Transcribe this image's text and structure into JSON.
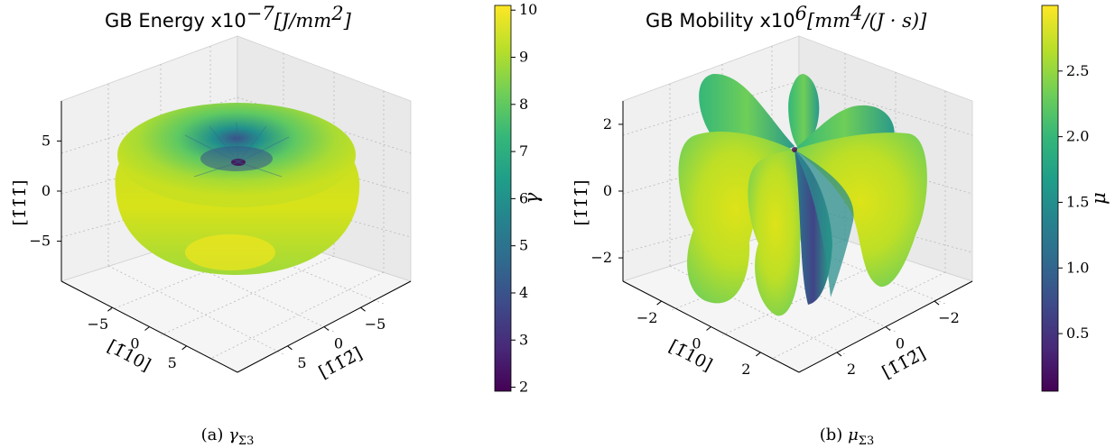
{
  "chart_data": [
    {
      "type": "surface3d",
      "title": "GB Energy x10",
      "title_exponent": "−7",
      "title_units": "[J/mm²]",
      "title_units_head": "[J/mm",
      "title_units_tail": "]",
      "title_units_sup": "2",
      "z_label": "[1̄1̄1̄]",
      "x_label": "[1̄10]",
      "y_label": "[1̄1̄2̄]",
      "z_ticks": [
        "5",
        "0",
        "−5"
      ],
      "x_ticks": [
        "−5",
        "0",
        "5"
      ],
      "y_ticks": [
        "−5",
        "0",
        "5"
      ],
      "z_range": [
        -9,
        9
      ],
      "x_range": [
        -9,
        9
      ],
      "y_range": [
        -9,
        9
      ],
      "colorbar": {
        "label": "γ",
        "min": 1.8,
        "max": 10.1,
        "ticks": [
          "10",
          "9",
          "8",
          "7",
          "6",
          "5",
          "4",
          "3",
          "2"
        ],
        "tick_values": [
          10,
          9,
          8,
          7,
          6,
          5,
          4,
          3,
          2
        ],
        "colormap": "viridis"
      },
      "caption_prefix": "(a) ",
      "caption_symbol": "γ",
      "caption_sub": "Σ3"
    },
    {
      "type": "surface3d",
      "title": "GB Mobility x10",
      "title_exponent": "6",
      "title_units": "[mm⁴/(J·s)]",
      "title_units_head": "[mm",
      "title_units_tail": "/(J · s)]",
      "title_units_sup": "4",
      "z_label": "[1̄1̄1̄]",
      "x_label": "[1̄10]",
      "y_label": "[1̄1̄2̄]",
      "z_ticks": [
        "2",
        "0",
        "−2"
      ],
      "x_ticks": [
        "−2",
        "0",
        "2"
      ],
      "y_ticks": [
        "−2",
        "0",
        "2"
      ],
      "z_range": [
        -2.7,
        2.7
      ],
      "x_range": [
        -2.7,
        2.7
      ],
      "y_range": [
        -2.7,
        2.7
      ],
      "colorbar": {
        "label": "μ",
        "min": 0.02,
        "max": 3.0,
        "ticks": [
          "2.5",
          "2.0",
          "1.5",
          "1.0",
          "0.5"
        ],
        "tick_values": [
          2.5,
          2.0,
          1.5,
          1.0,
          0.5
        ],
        "colormap": "viridis"
      },
      "caption_prefix": "(b) ",
      "caption_symbol": "μ",
      "caption_sub": "Σ3"
    }
  ],
  "colors": {
    "viridis": [
      "#440154",
      "#482878",
      "#3e4989",
      "#31688e",
      "#26828e",
      "#1f9e89",
      "#35b779",
      "#6ece58",
      "#b5de2b",
      "#fde725"
    ],
    "pane": "#f2f2f2",
    "pane_dark": "#e6e6e6",
    "grid": "#b0b0b0"
  }
}
